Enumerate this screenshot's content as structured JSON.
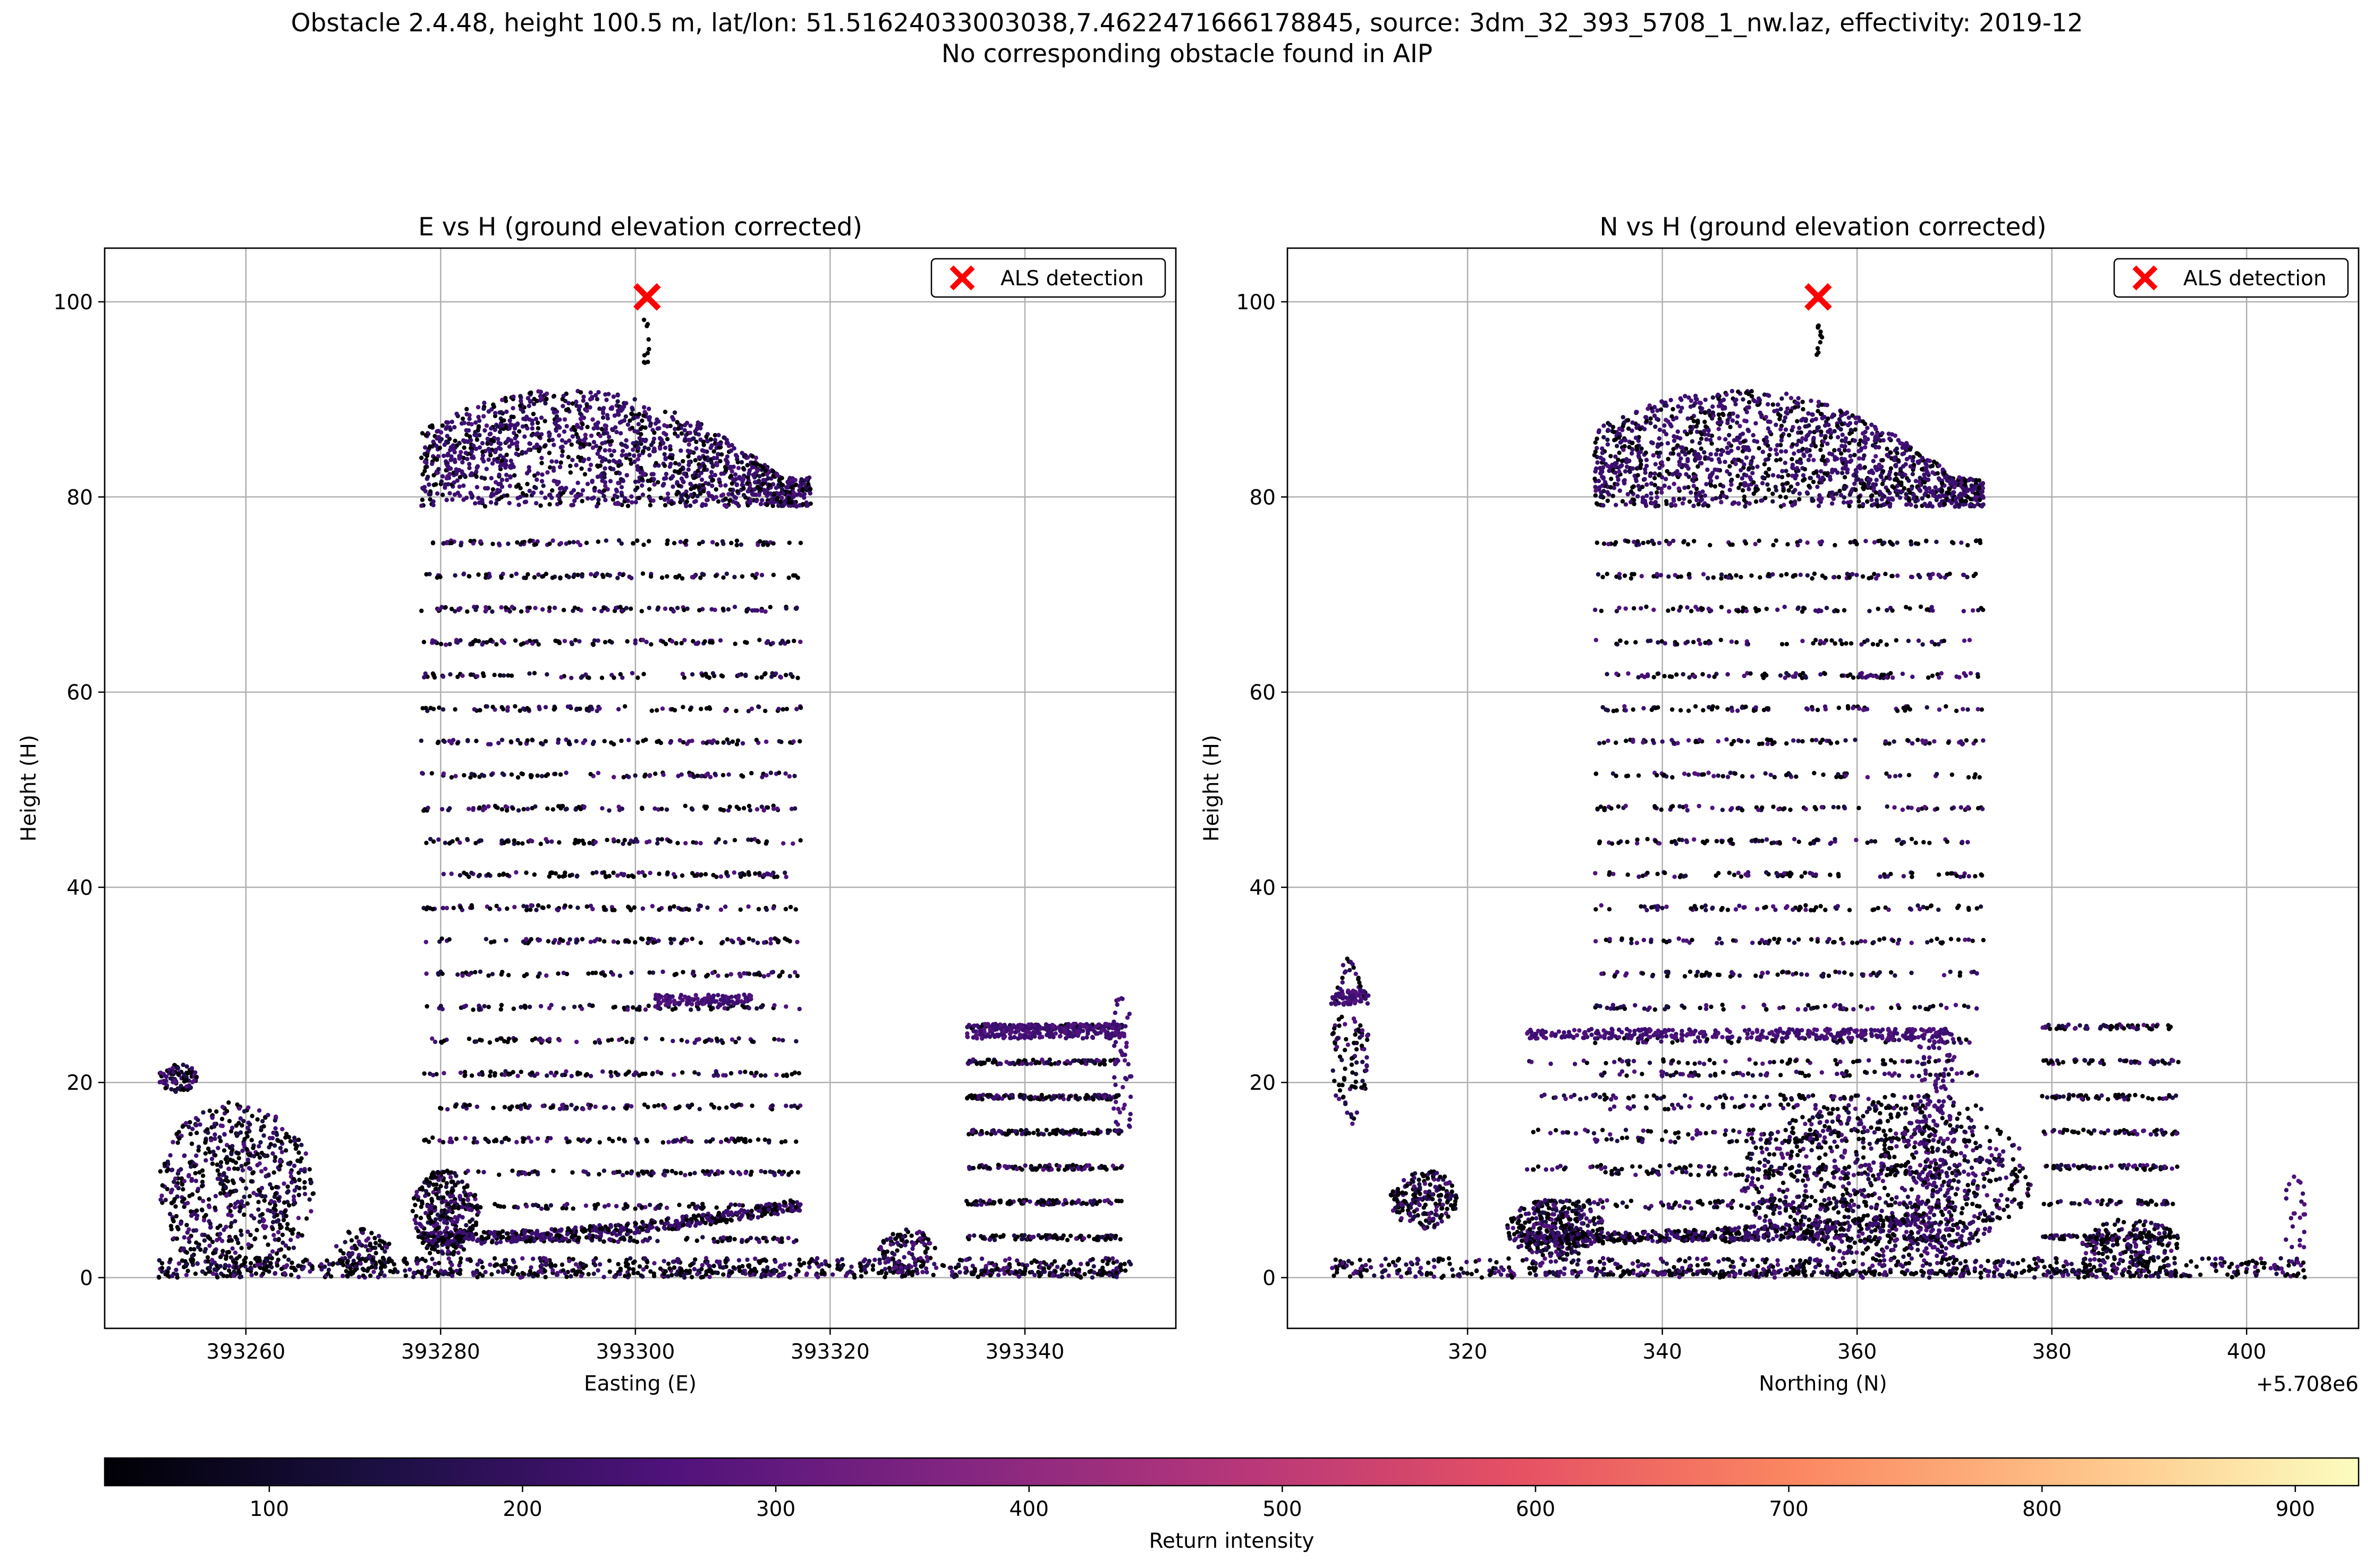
{
  "figure": {
    "title_line1": "Obstacle 2.4.48, height 100.5 m, lat/lon: 51.51624033003038,7.4622471666178845, source: 3dm_32_393_5708_1_nw.laz, effectivity: 2019-12",
    "title_line2": "No corresponding obstacle found in AIP"
  },
  "chart_data": [
    {
      "type": "scatter",
      "title": "E vs H (ground elevation corrected)",
      "xlabel": "Easting (E)",
      "ylabel": "Height (H)",
      "xlim": [
        393245.5,
        393355.5
      ],
      "ylim": [
        -5.2,
        105.5
      ],
      "xticks": [
        393260,
        393280,
        393300,
        393320,
        393340
      ],
      "xtick_labels": [
        "393260",
        "393280",
        "393300",
        "393320",
        "393340"
      ],
      "yticks": [
        0,
        20,
        40,
        60,
        80,
        100
      ],
      "ytick_labels": [
        "0",
        "20",
        "40",
        "60",
        "80",
        "100"
      ],
      "offset_label": "",
      "grid": true,
      "legend": {
        "location": "upper right",
        "entries": [
          "ALS detection"
        ]
      },
      "detection": {
        "x": 393301.2,
        "y": 100.5,
        "label": "ALS detection",
        "marker": "x",
        "color": "#ff0000"
      },
      "color_by": "Return intensity",
      "point_clusters": [
        {
          "shape": "blob",
          "x": [
            393251,
            393267
          ],
          "y": [
            0,
            18
          ],
          "density": 650
        },
        {
          "shape": "blob",
          "x": [
            393251,
            393255
          ],
          "y": [
            19,
            22
          ],
          "density": 90
        },
        {
          "shape": "blob",
          "x": [
            393277,
            393284
          ],
          "y": [
            2,
            11
          ],
          "density": 280
        },
        {
          "shape": "blob",
          "x": [
            393269,
            393275
          ],
          "y": [
            0,
            5
          ],
          "density": 90
        },
        {
          "shape": "blob",
          "x": [
            393325,
            393331
          ],
          "y": [
            0,
            5
          ],
          "density": 110
        },
        {
          "shape": "crown",
          "x": [
            393278,
            393318
          ],
          "y": [
            79,
            91
          ],
          "density": 1500
        },
        {
          "shape": "floors",
          "x": [
            393278,
            393317
          ],
          "y": [
            0,
            76
          ],
          "density": 2000,
          "spacing": 3.4
        },
        {
          "shape": "floors",
          "x": [
            393334,
            393350
          ],
          "y": [
            0,
            26
          ],
          "density": 750,
          "spacing": 3.6
        },
        {
          "shape": "band",
          "x": [
            393334,
            393350
          ],
          "y": [
            24.5,
            26
          ],
          "density": 260
        },
        {
          "shape": "band",
          "x": [
            393302,
            393312
          ],
          "y": [
            28,
            29
          ],
          "density": 120
        },
        {
          "shape": "band",
          "x": [
            393349,
            393351
          ],
          "y": [
            15,
            31
          ],
          "density": 50
        },
        {
          "shape": "slope",
          "x": [
            393278,
            393317
          ],
          "y": [
            4,
            7.5
          ],
          "density": 520
        },
        {
          "shape": "line",
          "x": [
            393300.8,
            393301.4
          ],
          "y": [
            93,
            99
          ],
          "density": 10
        },
        {
          "shape": "ground",
          "x": [
            393251,
            393351
          ],
          "y": [
            0,
            2
          ],
          "density": 700
        }
      ]
    },
    {
      "type": "scatter",
      "title": "N vs H (ground elevation corrected)",
      "xlabel": "Northing (N)",
      "ylabel": "Height (H)",
      "xlim": [
        5708301.5,
        5708411.5
      ],
      "ylim": [
        -5.2,
        105.5
      ],
      "xticks": [
        5708320,
        5708340,
        5708360,
        5708380,
        5708400
      ],
      "xtick_labels": [
        "320",
        "340",
        "360",
        "380",
        "400"
      ],
      "yticks": [
        0,
        20,
        40,
        60,
        80,
        100
      ],
      "ytick_labels": [
        "0",
        "20",
        "40",
        "60",
        "80",
        "100"
      ],
      "offset_label": "+5.708e6",
      "grid": true,
      "legend": {
        "location": "upper right",
        "entries": [
          "ALS detection"
        ]
      },
      "detection": {
        "x": 5708356.0,
        "y": 100.5,
        "label": "ALS detection",
        "marker": "x",
        "color": "#ff0000"
      },
      "color_by": "Return intensity",
      "point_clusters": [
        {
          "shape": "blob",
          "x": [
            5708306,
            5708310
          ],
          "y": [
            15,
            33
          ],
          "density": 120
        },
        {
          "shape": "band",
          "x": [
            5708306,
            5708310
          ],
          "y": [
            28,
            29.5
          ],
          "density": 60
        },
        {
          "shape": "blob",
          "x": [
            5708312,
            5708319
          ],
          "y": [
            5,
            11
          ],
          "density": 200
        },
        {
          "shape": "blob",
          "x": [
            5708324,
            5708334
          ],
          "y": [
            2,
            8
          ],
          "density": 320
        },
        {
          "shape": "crown",
          "x": [
            5708333,
            5708373
          ],
          "y": [
            79,
            91
          ],
          "density": 1500
        },
        {
          "shape": "floors",
          "x": [
            5708333,
            5708373
          ],
          "y": [
            0,
            76
          ],
          "density": 1700,
          "spacing": 3.4
        },
        {
          "shape": "floors",
          "x": [
            5708326,
            5708370
          ],
          "y": [
            0,
            25
          ],
          "density": 500,
          "spacing": 3.6
        },
        {
          "shape": "band",
          "x": [
            5708326,
            5708370
          ],
          "y": [
            24.5,
            25.5
          ],
          "density": 320
        },
        {
          "shape": "band",
          "x": [
            5708366,
            5708370
          ],
          "y": [
            2,
            26
          ],
          "density": 160
        },
        {
          "shape": "blob",
          "x": [
            5708348,
            5708378
          ],
          "y": [
            2,
            18
          ],
          "density": 850
        },
        {
          "shape": "slope",
          "x": [
            5708326,
            5708366
          ],
          "y": [
            4,
            6
          ],
          "density": 420
        },
        {
          "shape": "floors",
          "x": [
            5708379,
            5708393
          ],
          "y": [
            0,
            27
          ],
          "density": 420,
          "spacing": 3.6
        },
        {
          "shape": "blob",
          "x": [
            5708383,
            5708393
          ],
          "y": [
            1,
            6
          ],
          "density": 180
        },
        {
          "shape": "band",
          "x": [
            5708404,
            5708406
          ],
          "y": [
            3,
            11
          ],
          "density": 22
        },
        {
          "shape": "line",
          "x": [
            5708355.8,
            5708356.4
          ],
          "y": [
            93,
            99
          ],
          "density": 10
        },
        {
          "shape": "ground",
          "x": [
            5708306,
            5708406
          ],
          "y": [
            0,
            2
          ],
          "density": 600
        }
      ]
    }
  ],
  "colorbar": {
    "label": "Return intensity",
    "colormap": "magma",
    "range": [
      35,
      925
    ],
    "ticks": [
      100,
      200,
      300,
      400,
      500,
      600,
      700,
      800,
      900
    ],
    "tick_labels": [
      "100",
      "200",
      "300",
      "400",
      "500",
      "600",
      "700",
      "800",
      "900"
    ]
  },
  "colors": {
    "detection_marker": "#ff0000",
    "grid": "#b0b0b0",
    "point_low": "#000004",
    "point_mid": "#3b0f70"
  }
}
